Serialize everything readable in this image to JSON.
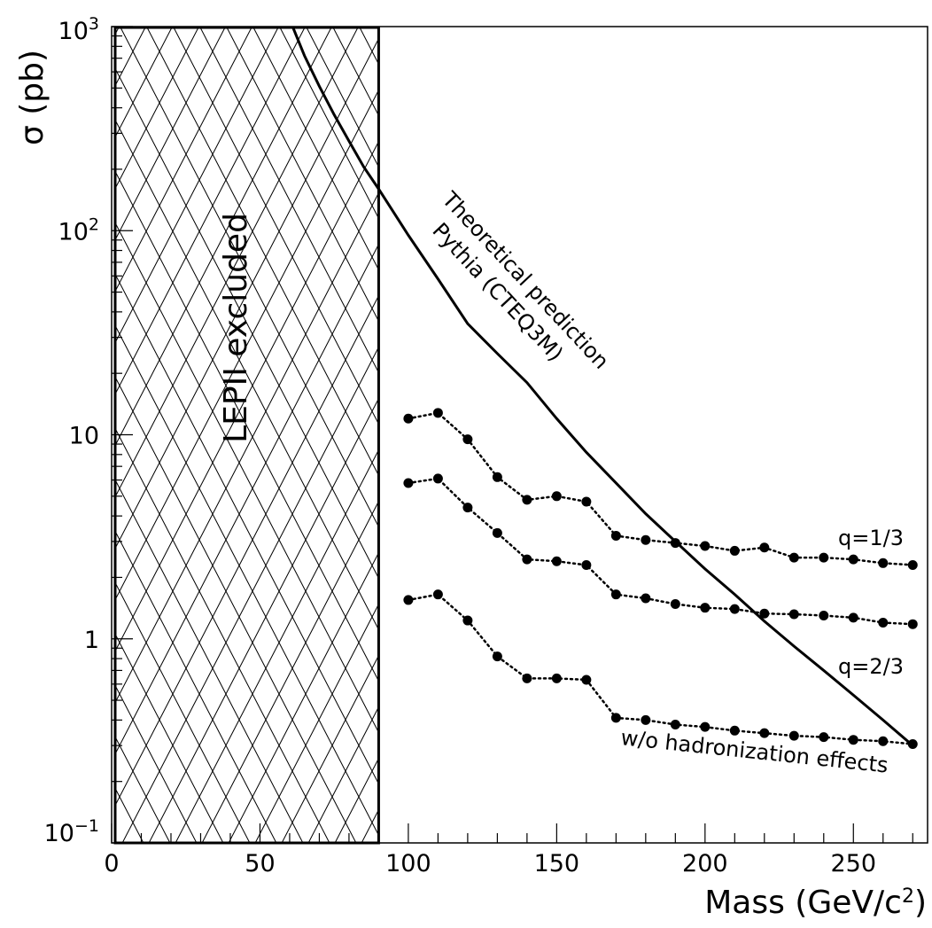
{
  "chart_data": {
    "type": "line",
    "xlabel": "Mass (GeV/c",
    "xlabel_sup": "2",
    "xlabel_close": ")",
    "ylabel": "σ (pb)",
    "xlim": [
      0,
      275
    ],
    "ylim": [
      0.1,
      1000
    ],
    "yscale": "log",
    "grid": false,
    "x_ticks": [
      {
        "value": 0,
        "label": "0"
      },
      {
        "value": 50,
        "label": "50"
      },
      {
        "value": 100,
        "label": "100"
      },
      {
        "value": 150,
        "label": "150"
      },
      {
        "value": 200,
        "label": "200"
      },
      {
        "value": 250,
        "label": "250"
      }
    ],
    "y_ticks": [
      {
        "value": 1000,
        "base": "10",
        "exp": "3"
      },
      {
        "value": 100,
        "base": "10",
        "exp": "2"
      },
      {
        "value": 10,
        "base": "10",
        "exp": ""
      },
      {
        "value": 1,
        "base": "1",
        "exp": ""
      },
      {
        "value": 0.1,
        "base": "10",
        "exp": "−1"
      }
    ],
    "excluded_region": {
      "x_range": [
        0,
        90
      ],
      "label": "LEPII excluded"
    },
    "theory": {
      "label_line1": "Theoretical prediction",
      "label_line2": "Pythia (CTEQ3M)",
      "x": [
        61,
        65,
        70,
        75,
        80,
        85,
        90,
        100,
        110,
        120,
        130,
        140,
        150,
        160,
        170,
        180,
        190,
        200,
        210,
        220,
        230,
        240,
        250,
        260,
        270
      ],
      "y": [
        1000,
        720,
        510,
        370,
        275,
        205,
        160,
        95,
        58,
        35,
        25,
        18,
        12,
        8.2,
        5.8,
        4.1,
        3.0,
        2.2,
        1.65,
        1.22,
        0.92,
        0.7,
        0.53,
        0.4,
        0.3
      ]
    },
    "series": [
      {
        "name": "q=1/3",
        "x": [
          100,
          110,
          120,
          130,
          140,
          150,
          160,
          170,
          180,
          190,
          200,
          210,
          220,
          230,
          240,
          250,
          260,
          270
        ],
        "y": [
          12,
          12.8,
          9.5,
          6.2,
          4.8,
          5.0,
          4.7,
          3.2,
          3.05,
          2.95,
          2.85,
          2.7,
          2.8,
          2.5,
          2.5,
          2.45,
          2.35,
          2.3
        ]
      },
      {
        "name": "q=2/3",
        "x": [
          100,
          110,
          120,
          130,
          140,
          150,
          160,
          170,
          180,
          190,
          200,
          210,
          220,
          230,
          240,
          250,
          260,
          270
        ],
        "y": [
          5.8,
          6.1,
          4.4,
          3.3,
          2.45,
          2.4,
          2.3,
          1.65,
          1.58,
          1.48,
          1.42,
          1.4,
          1.33,
          1.32,
          1.3,
          1.27,
          1.2,
          1.18
        ]
      },
      {
        "name": "w/o hadronization effects",
        "x": [
          100,
          110,
          120,
          130,
          140,
          150,
          160,
          170,
          180,
          190,
          200,
          210,
          220,
          230,
          240,
          250,
          260,
          270
        ],
        "y": [
          1.55,
          1.65,
          1.23,
          0.82,
          0.64,
          0.64,
          0.63,
          0.41,
          0.4,
          0.38,
          0.37,
          0.355,
          0.345,
          0.335,
          0.33,
          0.32,
          0.315,
          0.305
        ]
      }
    ]
  }
}
